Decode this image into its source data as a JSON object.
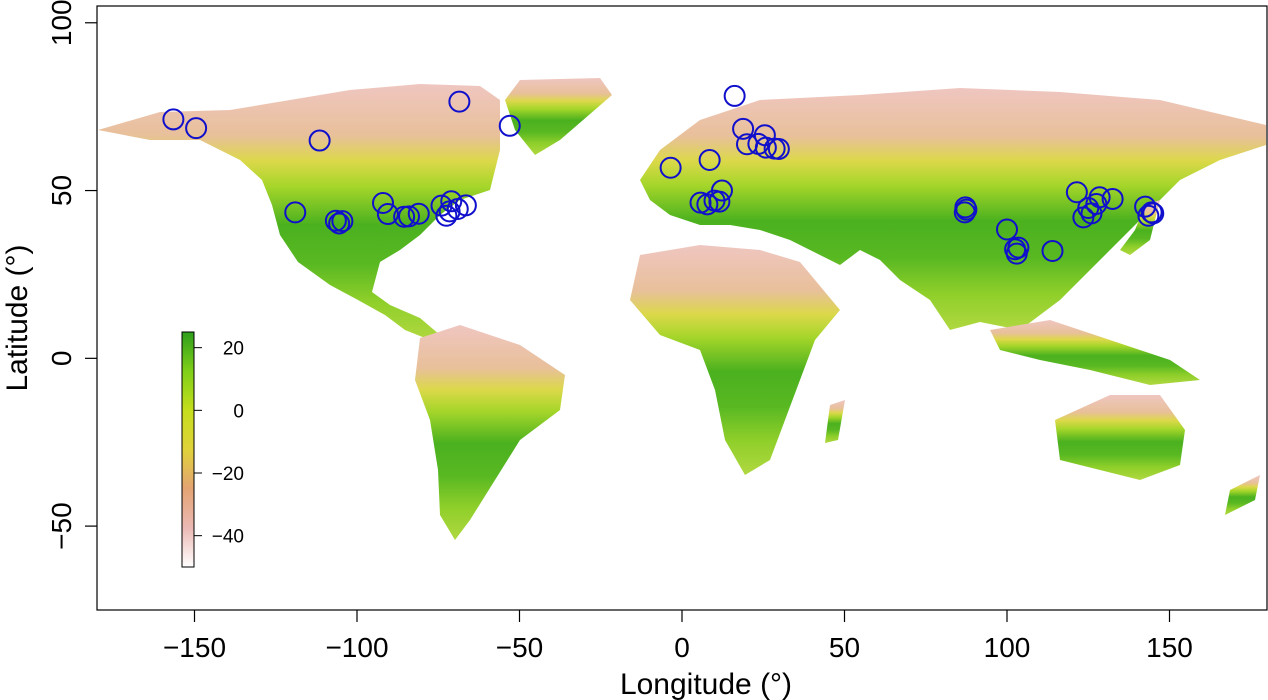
{
  "chart_data": {
    "type": "scatter",
    "title": "",
    "xlabel": "Longitude (°)",
    "ylabel": "Latitude (°)",
    "xlim": [
      -180,
      180
    ],
    "ylim": [
      -75,
      105
    ],
    "xticks": [
      -150,
      -100,
      -50,
      0,
      50,
      100,
      150
    ],
    "xtick_labels": [
      "−150",
      "−100",
      "−50",
      "0",
      "50",
      "100",
      "150"
    ],
    "yticks": [
      -50,
      0,
      50,
      100
    ],
    "ytick_labels": [
      "−50",
      "0",
      "50",
      "100"
    ],
    "background": "world map of temperature (raster)",
    "marker": {
      "shape": "open-circle",
      "color": "#1010cc"
    },
    "colorbar": {
      "range": [
        -50,
        25
      ],
      "ticks": [
        20,
        0,
        -20,
        -40
      ],
      "tick_labels": [
        "20",
        "0",
        "−20",
        "−40"
      ],
      "colors": [
        "#ffffff",
        "#ebb9b4",
        "#e3a373",
        "#e0d23a",
        "#c5de1c",
        "#7fcf18",
        "#2e9e1c"
      ]
    },
    "points": [
      {
        "lon": -156.5,
        "lat": 71.2
      },
      {
        "lon": -149.5,
        "lat": 68.6
      },
      {
        "lon": -111.5,
        "lat": 64.9
      },
      {
        "lon": -68.5,
        "lat": 76.5
      },
      {
        "lon": -53.0,
        "lat": 69.3
      },
      {
        "lon": -119.0,
        "lat": 43.5
      },
      {
        "lon": -106.5,
        "lat": 41.0
      },
      {
        "lon": -105.5,
        "lat": 40.2
      },
      {
        "lon": -104.5,
        "lat": 40.9
      },
      {
        "lon": -92.0,
        "lat": 46.3
      },
      {
        "lon": -90.5,
        "lat": 43.0
      },
      {
        "lon": -85.5,
        "lat": 42.2
      },
      {
        "lon": -84.0,
        "lat": 42.3
      },
      {
        "lon": -81.0,
        "lat": 43.1
      },
      {
        "lon": -74.0,
        "lat": 45.5
      },
      {
        "lon": -72.5,
        "lat": 42.5
      },
      {
        "lon": -71.5,
        "lat": 43.8
      },
      {
        "lon": -71.0,
        "lat": 46.8
      },
      {
        "lon": -69.0,
        "lat": 44.5
      },
      {
        "lon": -66.5,
        "lat": 45.6
      },
      {
        "lon": -3.5,
        "lat": 56.8
      },
      {
        "lon": 8.5,
        "lat": 59.1
      },
      {
        "lon": 16.2,
        "lat": 78.2
      },
      {
        "lon": 18.8,
        "lat": 68.4
      },
      {
        "lon": 20.0,
        "lat": 63.8
      },
      {
        "lon": 23.5,
        "lat": 63.9
      },
      {
        "lon": 25.5,
        "lat": 66.5
      },
      {
        "lon": 25.8,
        "lat": 62.8
      },
      {
        "lon": 28.5,
        "lat": 62.5
      },
      {
        "lon": 29.8,
        "lat": 62.4
      },
      {
        "lon": 5.7,
        "lat": 46.4
      },
      {
        "lon": 7.8,
        "lat": 45.9
      },
      {
        "lon": 10.0,
        "lat": 47.0
      },
      {
        "lon": 11.5,
        "lat": 46.7
      },
      {
        "lon": 12.3,
        "lat": 50.0
      },
      {
        "lon": 87.0,
        "lat": 43.5
      },
      {
        "lon": 87.2,
        "lat": 45.0
      },
      {
        "lon": 87.5,
        "lat": 44.3
      },
      {
        "lon": 100.0,
        "lat": 38.4
      },
      {
        "lon": 102.5,
        "lat": 32.5
      },
      {
        "lon": 103.0,
        "lat": 31.2
      },
      {
        "lon": 103.5,
        "lat": 33.0
      },
      {
        "lon": 114.0,
        "lat": 32.0
      },
      {
        "lon": 121.5,
        "lat": 49.5
      },
      {
        "lon": 123.5,
        "lat": 42.0
      },
      {
        "lon": 125.0,
        "lat": 44.8
      },
      {
        "lon": 126.0,
        "lat": 43.2
      },
      {
        "lon": 127.5,
        "lat": 46.0
      },
      {
        "lon": 128.5,
        "lat": 48.0
      },
      {
        "lon": 132.5,
        "lat": 47.5
      },
      {
        "lon": 142.5,
        "lat": 45.2
      },
      {
        "lon": 143.5,
        "lat": 42.5
      },
      {
        "lon": 144.5,
        "lat": 43.5
      },
      {
        "lon": 145.0,
        "lat": 43.2
      }
    ]
  }
}
